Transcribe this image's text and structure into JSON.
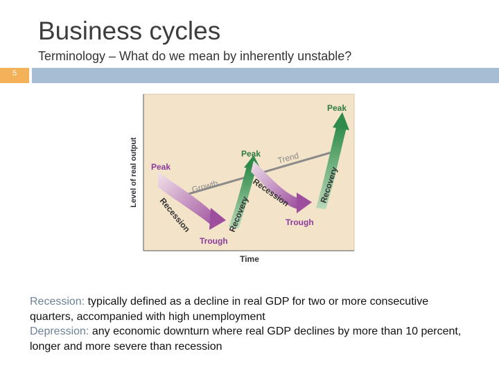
{
  "slide": {
    "title": "Business cycles",
    "subtitle": "Terminology – What do we mean by inherently unstable?",
    "number": "5"
  },
  "figure": {
    "y_axis_label": "Level of real output",
    "x_axis_label": "Time",
    "labels": {
      "peak_left": "Peak",
      "peak_mid": "Peak",
      "peak_right": "Peak",
      "trough_left": "Trough",
      "trough_right": "Trough",
      "recession_left": "Recession",
      "recession_right": "Recession",
      "recovery_left": "Recovery",
      "recovery_right": "Recovery",
      "growth": "Growth",
      "trend": "Trend"
    },
    "colors": {
      "panel": "#f3e3c8",
      "trend_line": "#8a8a8a",
      "recession": "#a45aa4",
      "recovery": "#2e8b4a",
      "label": "#8a3b9b",
      "peak_label": "#2f7a3f"
    }
  },
  "definitions": {
    "recession_term": "Recession:",
    "recession_text": " typically defined as a decline in real GDP for two or more consecutive quarters, accompanied with high unemployment",
    "depression_term": "Depression:",
    "depression_text": " any economic downturn where real GDP declines by more than 10 percent, longer and more severe than recession"
  }
}
